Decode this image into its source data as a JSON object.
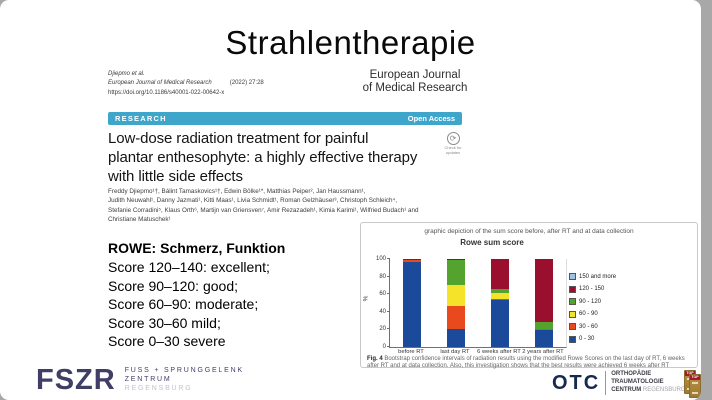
{
  "slide": {
    "title": "Strahlentherapie",
    "citation": {
      "line1": "Djiepmo et al.",
      "line2a": "European Journal of Medical Research",
      "line2b": "(2022) 27:28",
      "line3": "https://doi.org/10.1186/s40001-022-00642-x"
    },
    "journal_name_line1": "European Journal",
    "journal_name_line2": "of Medical Research",
    "banner": {
      "label": "RESEARCH",
      "open_access": "Open Access",
      "color": "#3fa6cb"
    },
    "paper": {
      "title_lines": [
        "Low-dose radiation treatment for painful",
        "plantar enthesophyte: a highly effective therapy",
        "with little side effects"
      ],
      "check_updates": "Check for updates",
      "check_icon": "circular-arrow-icon",
      "author_lines": [
        "Freddy Djiepmo¹†, Bálint Tamaskovics¹†, Edwin Bölke¹*, Matthias Peiper², Jan Haussmann¹,",
        "Judith Neuwahl¹, Danny Jazmati¹, Kitti Maas¹, Livia Schmidt¹, Roman Gelzhäuser³, Christoph Schleich⁴,",
        "Stefanie Corradini⁵, Klaus Orth⁶, Martijn van Griensven⁷, Amir Rezazadeh¹, Kimia Karimi¹, Wilfried Budach¹ and",
        "Christiane Matuschek¹"
      ]
    },
    "rowe": {
      "heading": "ROWE: Schmerz, Funktion",
      "lines": [
        "Score 120–140: excellent;",
        "Score 90–120: good;",
        "Score 60–90: moderate;",
        "Score 30–60 mild;",
        "Score 0–30 severe"
      ]
    },
    "chart_panel": {
      "caption_prefix": "Fig. 4",
      "caption_text": " Bootstrap confidence intervals of radiation results using the modified Rowe Scores on the last day of RT, 6 weeks after RT and at data collection. Also, this investigation shows that the best results were achieved 6 weeks after RT"
    },
    "footer": {
      "fszr": {
        "logo_text": "FSZR",
        "line1": "FUSS + SPRUNGGELENK",
        "line2": "ZENTRUM",
        "line3": "REGENSBURG",
        "color": "#403e66"
      },
      "otc": {
        "logo_text": "OTC",
        "line1": "ORTHOPÄDIE",
        "line2": "TRAUMATOLOGIE",
        "line3a": "CENTRUM",
        "line3b": "REGENSBURG",
        "badge_label": "TOP",
        "color": "#152a4e"
      }
    }
  },
  "chart_data": {
    "type": "bar",
    "stacked": true,
    "header": "graphic depiction of the sum score before, after RT and at data collection",
    "title": "Rowe sum score",
    "ylabel": "%",
    "ylim": [
      0,
      100
    ],
    "yticks": [
      0,
      20,
      40,
      60,
      80,
      100
    ],
    "grid": false,
    "legend_position": "right",
    "categories": [
      "before RT",
      "last day RT",
      "6 weeks after RT",
      "2 years after RT"
    ],
    "series": [
      {
        "name": "0 - 30",
        "color": "#1b4a9b",
        "values": [
          97,
          21,
          53,
          19
        ]
      },
      {
        "name": "30 - 60",
        "color": "#e8491d",
        "values": [
          2,
          26,
          2,
          1
        ]
      },
      {
        "name": "60 - 90",
        "color": "#f5e32a",
        "values": [
          0,
          23,
          6,
          1
        ]
      },
      {
        "name": "90 - 120",
        "color": "#53a32e",
        "values": [
          0,
          29,
          5,
          7
        ]
      },
      {
        "name": "120 - 150",
        "color": "#9b0f2e",
        "values": [
          1,
          1,
          34,
          72
        ]
      },
      {
        "name": "150 and more",
        "color": "#9dc3e6",
        "values": [
          0,
          0,
          0,
          0
        ]
      }
    ]
  }
}
